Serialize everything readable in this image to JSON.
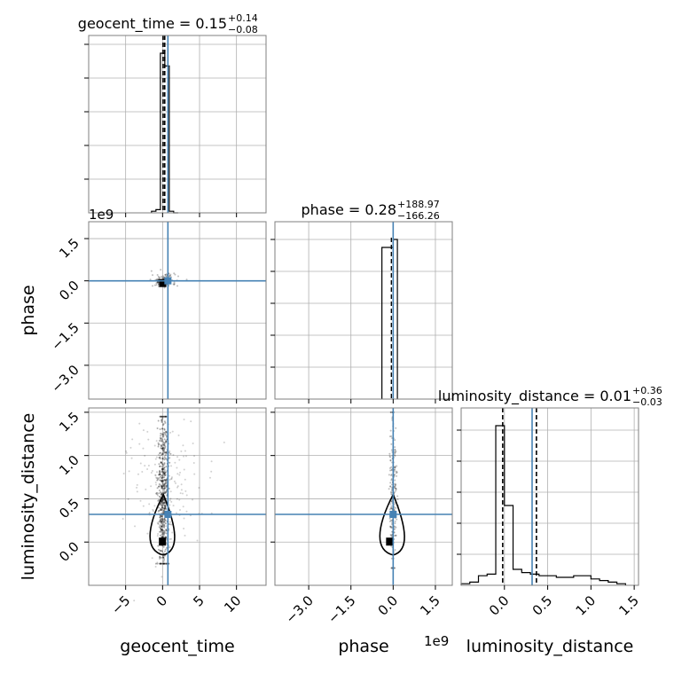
{
  "chart_data": {
    "type": "corner",
    "parameters": [
      "geocent_time",
      "phase",
      "luminosity_distance"
    ],
    "truth_color": "#4682b4",
    "truths": {
      "geocent_time": 0.72,
      "phase": 0.0,
      "luminosity_distance": 0.32
    },
    "panels": {
      "geocent_time": {
        "title": {
          "main": "geocent_time = 0.15",
          "sup": "+0.14",
          "sub": "−0.08"
        },
        "xlim": [
          -10,
          14
        ],
        "median": 0.15,
        "quantile_lines": [
          0.07,
          0.29
        ],
        "histogram": {
          "edges": [
            -1.5,
            -0.9,
            -0.3,
            0.3,
            0.9,
            1.5,
            2.1
          ],
          "counts": [
            0.01,
            0.02,
            1.0,
            0.92,
            0.01,
            0.0
          ]
        }
      },
      "phase": {
        "title": {
          "main": "phase = 0.28",
          "sup": "+188.97",
          "sub": "−166.26"
        },
        "xlim": [
          -4200000000.0,
          2100000000.0
        ],
        "median": 0.28,
        "histogram": {
          "edges": [
            -400000000.0,
            0.0,
            150000000.0
          ],
          "counts": [
            0.95,
            1.0
          ]
        }
      },
      "luminosity_distance": {
        "title": {
          "main": "luminosity_distance = 0.01",
          "sup": "+0.36",
          "sub": "−0.03"
        },
        "xlim": [
          -0.5,
          1.55
        ],
        "median": 0.01,
        "quantile_lines": [
          -0.02,
          0.37
        ],
        "histogram": {
          "edges": [
            -0.5,
            -0.4,
            -0.3,
            -0.2,
            -0.1,
            0.0,
            0.1,
            0.2,
            0.3,
            0.4,
            0.5,
            0.6,
            0.7,
            0.8,
            0.9,
            1.0,
            1.1,
            1.2,
            1.3,
            1.4
          ],
          "counts": [
            0.01,
            0.02,
            0.06,
            0.07,
            1.0,
            0.5,
            0.1,
            0.08,
            0.07,
            0.06,
            0.06,
            0.05,
            0.05,
            0.06,
            0.06,
            0.04,
            0.03,
            0.02,
            0.01
          ]
        }
      }
    },
    "axes": {
      "geocent_time": {
        "ticks": [
          -5,
          0,
          5,
          10
        ],
        "tick_labels": [
          "−5",
          "0",
          "5",
          "10"
        ],
        "label": "geocent_time"
      },
      "phase": {
        "ticks": [
          -3000000000.0,
          -1500000000.0,
          0.0,
          1500000000.0
        ],
        "tick_labels": [
          "−3.0",
          "−1.5",
          "0.0",
          "1.5"
        ],
        "label": "phase",
        "offset_text": "1e9"
      },
      "luminosity_distance": {
        "ticks": [
          0.0,
          0.5,
          1.0,
          1.5
        ],
        "tick_labels": [
          "0.0",
          "0.5",
          "1.0",
          "1.5"
        ],
        "label": "luminosity_distance"
      },
      "phase_y": {
        "ticks": [
          -3000000000.0,
          -1500000000.0,
          0.0,
          1500000000.0
        ],
        "tick_labels": [
          "−3.0",
          "−1.5",
          "0.0",
          "1.5"
        ],
        "label": "phase",
        "offset_text": "1e9",
        "ylim": [
          -4200000000.0,
          2100000000.0
        ]
      },
      "luminosity_distance_y": {
        "ticks": [
          0.0,
          0.5,
          1.0,
          1.5
        ],
        "tick_labels": [
          "0.0",
          "0.5",
          "1.0",
          "1.5"
        ],
        "label": "luminosity_distance",
        "ylim": [
          -0.5,
          1.55
        ]
      }
    },
    "grid": true
  }
}
